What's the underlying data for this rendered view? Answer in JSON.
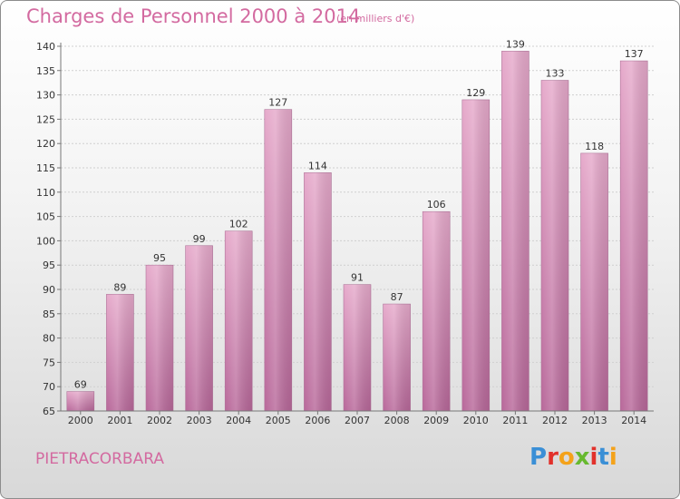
{
  "header": {
    "title": "Charges de Personnel 2000 à 2014",
    "subtitle": "(en milliers d'€)"
  },
  "footer": {
    "commune": "PIETRACORBARA",
    "logo": "Proxiti",
    "logo_colors": [
      "#3a8fd6",
      "#e2312b",
      "#f4a21a",
      "#67b92f",
      "#e2312b",
      "#3a8fd6",
      "#f4a21a"
    ]
  },
  "chart_data": {
    "type": "bar",
    "categories": [
      "2000",
      "2001",
      "2002",
      "2003",
      "2004",
      "2005",
      "2006",
      "2007",
      "2008",
      "2009",
      "2010",
      "2011",
      "2012",
      "2013",
      "2014"
    ],
    "values": [
      69,
      89,
      95,
      99,
      102,
      127,
      114,
      91,
      87,
      106,
      129,
      139,
      133,
      118,
      137
    ],
    "ylim": [
      65,
      140
    ],
    "yticks": [
      65,
      70,
      75,
      80,
      85,
      90,
      95,
      100,
      105,
      110,
      115,
      120,
      125,
      130,
      135,
      140
    ],
    "grid": true,
    "bar_color": "#d889b6",
    "title": "Charges de Personnel 2000 à 2014",
    "xlabel": "",
    "ylabel": ""
  }
}
